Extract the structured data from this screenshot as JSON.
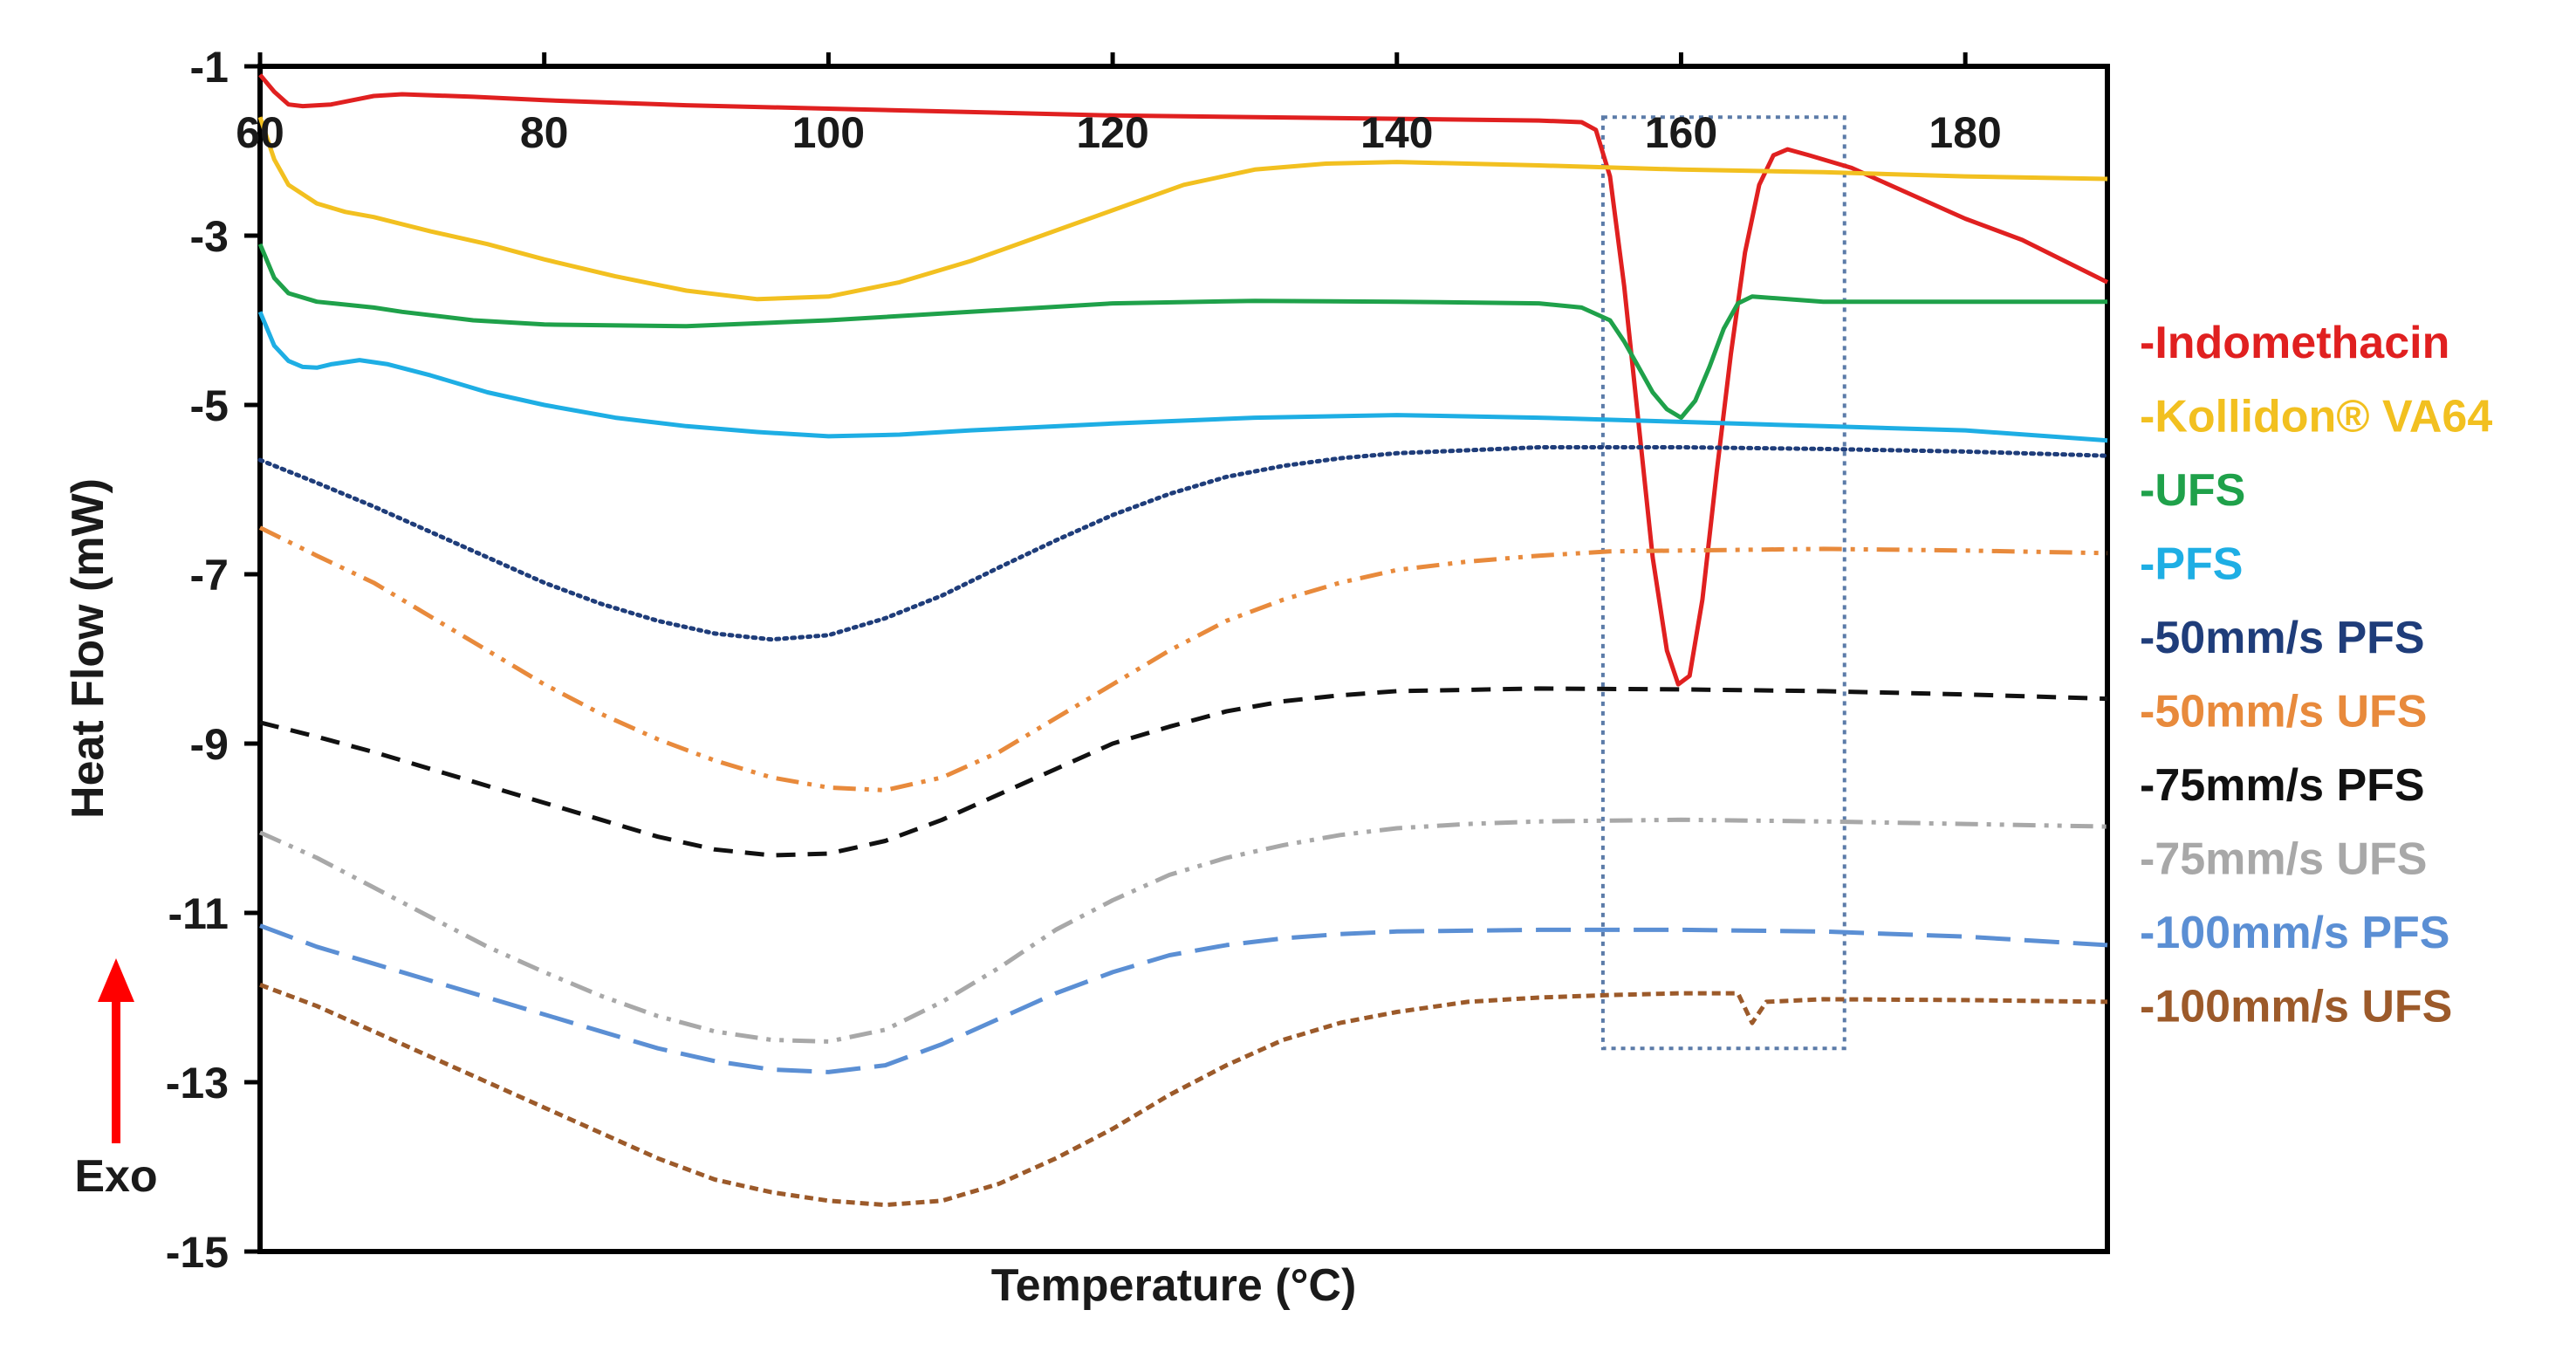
{
  "chart_data": {
    "type": "line",
    "title": "",
    "xlabel": "Temperature (°C)",
    "ylabel": "Heat Flow (mW)",
    "exo_label": "Exo",
    "xlim": [
      60,
      190
    ],
    "ylim": [
      -15,
      -1
    ],
    "x_ticks": [
      60,
      80,
      100,
      120,
      140,
      160,
      180
    ],
    "y_ticks": [
      -1,
      -3,
      -5,
      -7,
      -9,
      -11,
      -13,
      -15
    ],
    "x_tick_labels": [
      "60",
      "80",
      "100",
      "120",
      "140",
      "160",
      "180"
    ],
    "y_tick_labels": [
      "-1",
      "-3",
      "-5",
      "-7",
      "-9",
      "-11",
      "-13",
      "-15"
    ],
    "highlight_box": {
      "x_range": [
        154.5,
        171.5
      ],
      "y_range": [
        -12.6,
        -1.6
      ],
      "color": "#5b7ba8"
    },
    "series": [
      {
        "name": "Indomethacin",
        "color": "#e02020",
        "style": "solid",
        "points": [
          [
            60,
            -1.1
          ],
          [
            61,
            -1.3
          ],
          [
            62,
            -1.45
          ],
          [
            63,
            -1.47
          ],
          [
            65,
            -1.45
          ],
          [
            68,
            -1.35
          ],
          [
            70,
            -1.33
          ],
          [
            75,
            -1.36
          ],
          [
            80,
            -1.4
          ],
          [
            90,
            -1.46
          ],
          [
            100,
            -1.5
          ],
          [
            120,
            -1.58
          ],
          [
            140,
            -1.62
          ],
          [
            150,
            -1.64
          ],
          [
            153,
            -1.66
          ],
          [
            154,
            -1.75
          ],
          [
            155,
            -2.3
          ],
          [
            156,
            -3.6
          ],
          [
            157,
            -5.2
          ],
          [
            158,
            -6.8
          ],
          [
            159,
            -7.9
          ],
          [
            159.8,
            -8.3
          ],
          [
            160.6,
            -8.2
          ],
          [
            161.5,
            -7.3
          ],
          [
            162.5,
            -5.8
          ],
          [
            163.5,
            -4.4
          ],
          [
            164.5,
            -3.2
          ],
          [
            165.5,
            -2.4
          ],
          [
            166.5,
            -2.05
          ],
          [
            167.5,
            -1.98
          ],
          [
            169,
            -2.05
          ],
          [
            172,
            -2.2
          ],
          [
            176,
            -2.5
          ],
          [
            180,
            -2.8
          ],
          [
            184,
            -3.05
          ],
          [
            187,
            -3.3
          ],
          [
            190,
            -3.55
          ]
        ]
      },
      {
        "name": "Kollidon® VA64",
        "color": "#f2c020",
        "style": "solid",
        "points": [
          [
            60,
            -1.6
          ],
          [
            61,
            -2.1
          ],
          [
            62,
            -2.4
          ],
          [
            64,
            -2.62
          ],
          [
            66,
            -2.72
          ],
          [
            68,
            -2.78
          ],
          [
            72,
            -2.95
          ],
          [
            76,
            -3.1
          ],
          [
            80,
            -3.28
          ],
          [
            85,
            -3.48
          ],
          [
            90,
            -3.65
          ],
          [
            95,
            -3.75
          ],
          [
            100,
            -3.72
          ],
          [
            105,
            -3.55
          ],
          [
            110,
            -3.3
          ],
          [
            115,
            -3.0
          ],
          [
            120,
            -2.7
          ],
          [
            125,
            -2.4
          ],
          [
            130,
            -2.22
          ],
          [
            135,
            -2.15
          ],
          [
            140,
            -2.13
          ],
          [
            150,
            -2.17
          ],
          [
            160,
            -2.22
          ],
          [
            170,
            -2.25
          ],
          [
            180,
            -2.3
          ],
          [
            190,
            -2.33
          ]
        ]
      },
      {
        "name": "UFS",
        "color": "#1fa14a",
        "style": "solid",
        "points": [
          [
            60,
            -3.1
          ],
          [
            61,
            -3.5
          ],
          [
            62,
            -3.68
          ],
          [
            64,
            -3.78
          ],
          [
            68,
            -3.85
          ],
          [
            70,
            -3.9
          ],
          [
            75,
            -4.0
          ],
          [
            80,
            -4.05
          ],
          [
            90,
            -4.07
          ],
          [
            100,
            -4.0
          ],
          [
            110,
            -3.9
          ],
          [
            120,
            -3.8
          ],
          [
            130,
            -3.77
          ],
          [
            140,
            -3.78
          ],
          [
            150,
            -3.8
          ],
          [
            153,
            -3.85
          ],
          [
            155,
            -4.0
          ],
          [
            156,
            -4.25
          ],
          [
            157,
            -4.55
          ],
          [
            158,
            -4.85
          ],
          [
            159,
            -5.05
          ],
          [
            160,
            -5.15
          ],
          [
            161,
            -4.95
          ],
          [
            162,
            -4.55
          ],
          [
            163,
            -4.1
          ],
          [
            164,
            -3.8
          ],
          [
            165,
            -3.72
          ],
          [
            170,
            -3.78
          ],
          [
            180,
            -3.78
          ],
          [
            190,
            -3.78
          ]
        ]
      },
      {
        "name": "PFS",
        "color": "#1eaee4",
        "style": "solid",
        "points": [
          [
            60,
            -3.9
          ],
          [
            61,
            -4.3
          ],
          [
            62,
            -4.48
          ],
          [
            63,
            -4.55
          ],
          [
            64,
            -4.56
          ],
          [
            65,
            -4.52
          ],
          [
            67,
            -4.47
          ],
          [
            69,
            -4.52
          ],
          [
            72,
            -4.65
          ],
          [
            76,
            -4.85
          ],
          [
            80,
            -5.0
          ],
          [
            85,
            -5.15
          ],
          [
            90,
            -5.25
          ],
          [
            95,
            -5.32
          ],
          [
            100,
            -5.37
          ],
          [
            105,
            -5.35
          ],
          [
            110,
            -5.3
          ],
          [
            120,
            -5.22
          ],
          [
            130,
            -5.15
          ],
          [
            140,
            -5.12
          ],
          [
            150,
            -5.15
          ],
          [
            160,
            -5.2
          ],
          [
            170,
            -5.25
          ],
          [
            180,
            -5.3
          ],
          [
            190,
            -5.42
          ]
        ]
      },
      {
        "name": "50mm/s PFS",
        "color": "#1f3d7a",
        "style": "dotted",
        "points": [
          [
            60,
            -5.65
          ],
          [
            64,
            -5.92
          ],
          [
            68,
            -6.2
          ],
          [
            72,
            -6.5
          ],
          [
            76,
            -6.8
          ],
          [
            80,
            -7.1
          ],
          [
            84,
            -7.35
          ],
          [
            88,
            -7.55
          ],
          [
            92,
            -7.7
          ],
          [
            96,
            -7.77
          ],
          [
            100,
            -7.72
          ],
          [
            104,
            -7.52
          ],
          [
            108,
            -7.25
          ],
          [
            112,
            -6.92
          ],
          [
            116,
            -6.6
          ],
          [
            120,
            -6.3
          ],
          [
            124,
            -6.05
          ],
          [
            128,
            -5.85
          ],
          [
            132,
            -5.72
          ],
          [
            136,
            -5.63
          ],
          [
            140,
            -5.57
          ],
          [
            150,
            -5.5
          ],
          [
            160,
            -5.5
          ],
          [
            170,
            -5.52
          ],
          [
            180,
            -5.55
          ],
          [
            190,
            -5.6
          ]
        ]
      },
      {
        "name": "50mm/s UFS",
        "color": "#e88a3c",
        "style": "dashdotdot",
        "points": [
          [
            60,
            -6.45
          ],
          [
            64,
            -6.78
          ],
          [
            68,
            -7.1
          ],
          [
            72,
            -7.5
          ],
          [
            76,
            -7.9
          ],
          [
            80,
            -8.3
          ],
          [
            84,
            -8.65
          ],
          [
            88,
            -8.95
          ],
          [
            92,
            -9.2
          ],
          [
            96,
            -9.4
          ],
          [
            100,
            -9.52
          ],
          [
            104,
            -9.55
          ],
          [
            108,
            -9.4
          ],
          [
            112,
            -9.1
          ],
          [
            116,
            -8.7
          ],
          [
            120,
            -8.3
          ],
          [
            124,
            -7.9
          ],
          [
            128,
            -7.55
          ],
          [
            132,
            -7.3
          ],
          [
            136,
            -7.1
          ],
          [
            140,
            -6.95
          ],
          [
            145,
            -6.85
          ],
          [
            150,
            -6.78
          ],
          [
            155,
            -6.73
          ],
          [
            160,
            -6.72
          ],
          [
            170,
            -6.7
          ],
          [
            180,
            -6.72
          ],
          [
            190,
            -6.75
          ]
        ]
      },
      {
        "name": "75mm/s PFS",
        "color": "#111111",
        "style": "dashed",
        "points": [
          [
            60,
            -8.75
          ],
          [
            64,
            -8.92
          ],
          [
            68,
            -9.1
          ],
          [
            72,
            -9.3
          ],
          [
            76,
            -9.5
          ],
          [
            80,
            -9.7
          ],
          [
            84,
            -9.9
          ],
          [
            88,
            -10.1
          ],
          [
            92,
            -10.25
          ],
          [
            96,
            -10.32
          ],
          [
            100,
            -10.3
          ],
          [
            104,
            -10.15
          ],
          [
            108,
            -9.9
          ],
          [
            112,
            -9.6
          ],
          [
            116,
            -9.3
          ],
          [
            120,
            -9.0
          ],
          [
            124,
            -8.8
          ],
          [
            128,
            -8.62
          ],
          [
            132,
            -8.5
          ],
          [
            136,
            -8.43
          ],
          [
            140,
            -8.38
          ],
          [
            150,
            -8.35
          ],
          [
            160,
            -8.36
          ],
          [
            170,
            -8.38
          ],
          [
            180,
            -8.42
          ],
          [
            190,
            -8.47
          ]
        ]
      },
      {
        "name": "75mm/s UFS",
        "color": "#a8a8a8",
        "style": "dashdotdot",
        "points": [
          [
            60,
            -10.05
          ],
          [
            64,
            -10.35
          ],
          [
            68,
            -10.7
          ],
          [
            72,
            -11.05
          ],
          [
            76,
            -11.4
          ],
          [
            80,
            -11.7
          ],
          [
            84,
            -11.98
          ],
          [
            88,
            -12.22
          ],
          [
            92,
            -12.4
          ],
          [
            96,
            -12.5
          ],
          [
            100,
            -12.52
          ],
          [
            104,
            -12.38
          ],
          [
            108,
            -12.05
          ],
          [
            112,
            -11.65
          ],
          [
            116,
            -11.2
          ],
          [
            120,
            -10.85
          ],
          [
            124,
            -10.55
          ],
          [
            128,
            -10.35
          ],
          [
            132,
            -10.2
          ],
          [
            136,
            -10.08
          ],
          [
            140,
            -10.0
          ],
          [
            145,
            -9.95
          ],
          [
            150,
            -9.92
          ],
          [
            160,
            -9.9
          ],
          [
            170,
            -9.92
          ],
          [
            180,
            -9.95
          ],
          [
            190,
            -9.98
          ]
        ]
      },
      {
        "name": "100mm/s PFS",
        "color": "#5b8fd4",
        "style": "longdash",
        "points": [
          [
            60,
            -11.15
          ],
          [
            64,
            -11.4
          ],
          [
            68,
            -11.6
          ],
          [
            72,
            -11.8
          ],
          [
            76,
            -12.0
          ],
          [
            80,
            -12.2
          ],
          [
            84,
            -12.4
          ],
          [
            88,
            -12.6
          ],
          [
            92,
            -12.75
          ],
          [
            96,
            -12.85
          ],
          [
            100,
            -12.88
          ],
          [
            104,
            -12.8
          ],
          [
            108,
            -12.55
          ],
          [
            112,
            -12.25
          ],
          [
            116,
            -11.95
          ],
          [
            120,
            -11.7
          ],
          [
            124,
            -11.5
          ],
          [
            128,
            -11.38
          ],
          [
            132,
            -11.3
          ],
          [
            136,
            -11.25
          ],
          [
            140,
            -11.22
          ],
          [
            150,
            -11.2
          ],
          [
            160,
            -11.2
          ],
          [
            170,
            -11.22
          ],
          [
            180,
            -11.28
          ],
          [
            190,
            -11.38
          ]
        ]
      },
      {
        "name": "100mm/s UFS",
        "color": "#9c5a2a",
        "style": "shortdash",
        "points": [
          [
            60,
            -11.85
          ],
          [
            64,
            -12.1
          ],
          [
            68,
            -12.4
          ],
          [
            72,
            -12.7
          ],
          [
            76,
            -13.0
          ],
          [
            80,
            -13.3
          ],
          [
            84,
            -13.6
          ],
          [
            88,
            -13.9
          ],
          [
            92,
            -14.15
          ],
          [
            96,
            -14.3
          ],
          [
            100,
            -14.4
          ],
          [
            104,
            -14.45
          ],
          [
            108,
            -14.4
          ],
          [
            112,
            -14.2
          ],
          [
            116,
            -13.9
          ],
          [
            120,
            -13.55
          ],
          [
            124,
            -13.15
          ],
          [
            128,
            -12.8
          ],
          [
            132,
            -12.5
          ],
          [
            136,
            -12.3
          ],
          [
            140,
            -12.17
          ],
          [
            145,
            -12.05
          ],
          [
            150,
            -12.0
          ],
          [
            155,
            -11.97
          ],
          [
            160,
            -11.95
          ],
          [
            164,
            -11.95
          ],
          [
            165,
            -12.3
          ],
          [
            166,
            -12.05
          ],
          [
            170,
            -12.02
          ],
          [
            180,
            -12.03
          ],
          [
            190,
            -12.05
          ]
        ]
      }
    ]
  }
}
